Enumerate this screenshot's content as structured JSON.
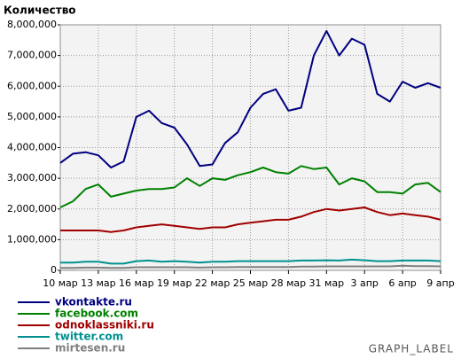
{
  "chart_data": {
    "type": "line",
    "title": "Количество",
    "watermark": "GRAPH_LABEL",
    "categories": [
      "10 мар",
      null,
      null,
      "13 мар",
      null,
      null,
      "16 мар",
      null,
      null,
      "19 мар",
      null,
      null,
      "22 мар",
      null,
      null,
      "25 мар",
      null,
      null,
      "28 мар",
      null,
      null,
      "31 мар",
      null,
      null,
      "3 апр",
      null,
      null,
      "6 апр",
      null,
      null,
      "9 апр"
    ],
    "ylim": [
      0,
      8000000
    ],
    "yticks": [
      0,
      {
        "value": 1000000,
        "label": "1,000,000"
      },
      {
        "value": 2000000,
        "label": "2,000,000"
      },
      {
        "value": 3000000,
        "label": "3,000,000"
      },
      {
        "value": 4000000,
        "label": "4,000,000"
      },
      {
        "value": 5000000,
        "label": "5,000,000"
      },
      {
        "value": 6000000,
        "label": "6,000,000"
      },
      {
        "value": 7000000,
        "label": "7,000,000"
      },
      {
        "value": 8000000,
        "label": "8,000,000"
      }
    ],
    "grid": true,
    "series": [
      {
        "name": "vkontakte.ru",
        "color": "#000080",
        "values": [
          3500000,
          3800000,
          3850000,
          3750000,
          3350000,
          3550000,
          5000000,
          5200000,
          4800000,
          4650000,
          4100000,
          3400000,
          3450000,
          4150000,
          4500000,
          5300000,
          5750000,
          5900000,
          5200000,
          5300000,
          7000000,
          7800000,
          7000000,
          7550000,
          7350000,
          5750000,
          5500000,
          6150000,
          5950000,
          6100000,
          5950000
        ]
      },
      {
        "name": "facebook.com",
        "color": "#008000",
        "values": [
          2050000,
          2250000,
          2650000,
          2800000,
          2400000,
          2500000,
          2600000,
          2650000,
          2650000,
          2700000,
          3000000,
          2750000,
          3000000,
          2950000,
          3100000,
          3200000,
          3350000,
          3200000,
          3150000,
          3400000,
          3300000,
          3350000,
          2800000,
          3000000,
          2900000,
          2550000,
          2550000,
          2500000,
          2800000,
          2850000,
          2550000
        ]
      },
      {
        "name": "odnoklassniki.ru",
        "color": "#a00000",
        "values": [
          1300000,
          1300000,
          1300000,
          1300000,
          1250000,
          1300000,
          1400000,
          1450000,
          1500000,
          1450000,
          1400000,
          1350000,
          1400000,
          1400000,
          1500000,
          1550000,
          1600000,
          1650000,
          1650000,
          1750000,
          1900000,
          2000000,
          1950000,
          2000000,
          2050000,
          1900000,
          1800000,
          1850000,
          1800000,
          1750000,
          1650000
        ]
      },
      {
        "name": "twitter.com",
        "color": "#009090",
        "values": [
          250000,
          250000,
          280000,
          280000,
          220000,
          220000,
          300000,
          320000,
          280000,
          300000,
          280000,
          250000,
          280000,
          280000,
          300000,
          300000,
          300000,
          300000,
          300000,
          320000,
          320000,
          330000,
          320000,
          350000,
          330000,
          300000,
          300000,
          320000,
          320000,
          320000,
          300000
        ]
      },
      {
        "name": "mirtesen.ru",
        "color": "#808080",
        "values": [
          80000,
          80000,
          90000,
          90000,
          80000,
          80000,
          100000,
          100000,
          100000,
          100000,
          100000,
          90000,
          100000,
          100000,
          110000,
          110000,
          110000,
          110000,
          110000,
          120000,
          120000,
          130000,
          130000,
          130000,
          130000,
          130000,
          130000,
          150000,
          140000,
          140000,
          130000
        ]
      }
    ]
  }
}
